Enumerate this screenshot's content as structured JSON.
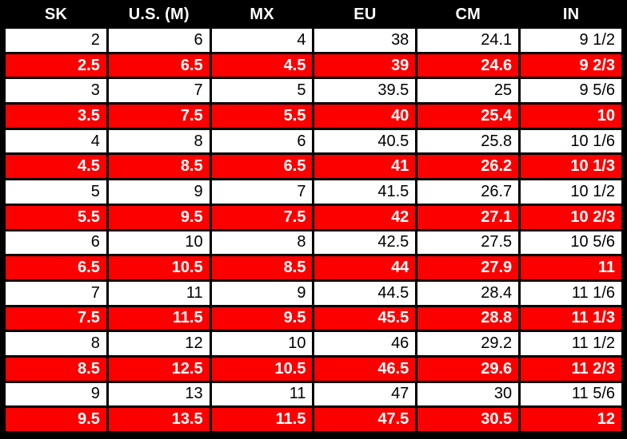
{
  "colors": {
    "header_bg": "#000000",
    "header_text": "#ffffff",
    "grid": "#000000",
    "row_bg": "#ffffff",
    "row_text": "#000000",
    "highlight_bg": "#fc0000",
    "highlight_text": "#ffffff"
  },
  "chart_data": {
    "type": "table",
    "columns": [
      "SK",
      "U.S. (M)",
      "MX",
      "EU",
      "CM",
      "IN"
    ],
    "rows": [
      [
        "2",
        "6",
        "4",
        "38",
        "24.1",
        "9 1/2"
      ],
      [
        "2.5",
        "6.5",
        "4.5",
        "39",
        "24.6",
        "9 2/3"
      ],
      [
        "3",
        "7",
        "5",
        "39.5",
        "25",
        "9 5/6"
      ],
      [
        "3.5",
        "7.5",
        "5.5",
        "40",
        "25.4",
        "10"
      ],
      [
        "4",
        "8",
        "6",
        "40.5",
        "25.8",
        "10 1/6"
      ],
      [
        "4.5",
        "8.5",
        "6.5",
        "41",
        "26.2",
        "10 1/3"
      ],
      [
        "5",
        "9",
        "7",
        "41.5",
        "26.7",
        "10 1/2"
      ],
      [
        "5.5",
        "9.5",
        "7.5",
        "42",
        "27.1",
        "10 2/3"
      ],
      [
        "6",
        "10",
        "8",
        "42.5",
        "27.5",
        "10 5/6"
      ],
      [
        "6.5",
        "10.5",
        "8.5",
        "44",
        "27.9",
        "11"
      ],
      [
        "7",
        "11",
        "9",
        "44.5",
        "28.4",
        "11 1/6"
      ],
      [
        "7.5",
        "11.5",
        "9.5",
        "45.5",
        "28.8",
        "11 1/3"
      ],
      [
        "8",
        "12",
        "10",
        "46",
        "29.2",
        "11 1/2"
      ],
      [
        "8.5",
        "12.5",
        "10.5",
        "46.5",
        "29.6",
        "11 2/3"
      ],
      [
        "9",
        "13",
        "11",
        "47",
        "30",
        "11 5/6"
      ],
      [
        "9.5",
        "13.5",
        "11.5",
        "47.5",
        "30.5",
        "12"
      ]
    ],
    "highlighted_row_indices": [
      1,
      3,
      5,
      7,
      9,
      11,
      13,
      15
    ],
    "layout": {
      "header_position": "top",
      "cell_text_align": "right",
      "header_text_align": "center",
      "grid": true
    }
  }
}
